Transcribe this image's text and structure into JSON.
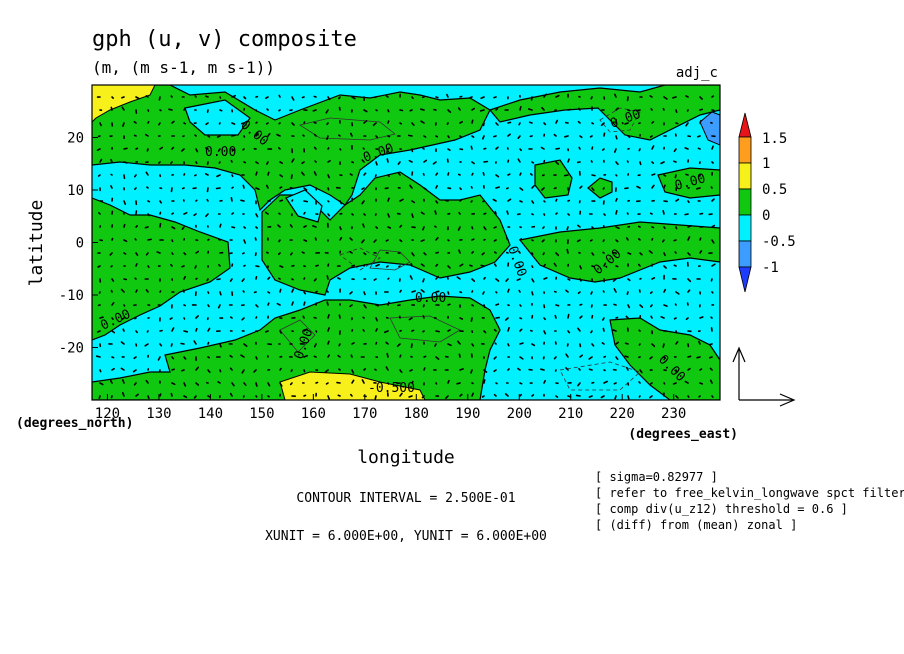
{
  "chart_data": {
    "type": "heatmap",
    "title": "gph (u, v) composite",
    "subtitle": "(m, (m s-1, m s-1))",
    "tag": "adj_c",
    "xlabel": "longitude",
    "ylabel": "latitude",
    "x_unit_label": "(degrees_east)",
    "y_unit_label": "(degrees_north)",
    "xlim": [
      117,
      239
    ],
    "ylim": [
      -30,
      30
    ],
    "x_ticks": [
      120,
      130,
      140,
      150,
      160,
      170,
      180,
      190,
      200,
      210,
      220,
      230
    ],
    "y_ticks": [
      20,
      10,
      0,
      -10,
      -20
    ],
    "colorbar": {
      "levels": [
        "1.5",
        "1",
        "0.5",
        "0",
        "-0.5",
        "-1"
      ],
      "colors": {
        "above_1_5": "#e8141c",
        "1_to_1_5": "#ff9e1e",
        "0_5_to_1": "#f7f01a",
        "0_to_0_5": "#10c810",
        "m0_5_to_0": "#00f0ff",
        "m1_to_m0_5": "#3c9cff",
        "below_m1": "#1e3cff"
      }
    },
    "contour_labels": [
      "0.00",
      "0.00",
      "0.00",
      "0.00",
      "0.00",
      "0.00",
      "0.00",
      "0.00",
      "0.00",
      "0.00",
      "0.00",
      "-0.500"
    ],
    "contour_interval": "CONTOUR INTERVAL = 2.500E-01",
    "units_text": "XUNIT = 6.000E+00, YUNIT = 6.000E+00",
    "notes": [
      "[ sigma=0.82977 ]",
      "[ refer to free_kelvin_longwave spct filterin",
      "[ comp div(u_z12) threshold = 0.6 ]",
      "[ (diff) from (mean) zonal ]"
    ]
  }
}
